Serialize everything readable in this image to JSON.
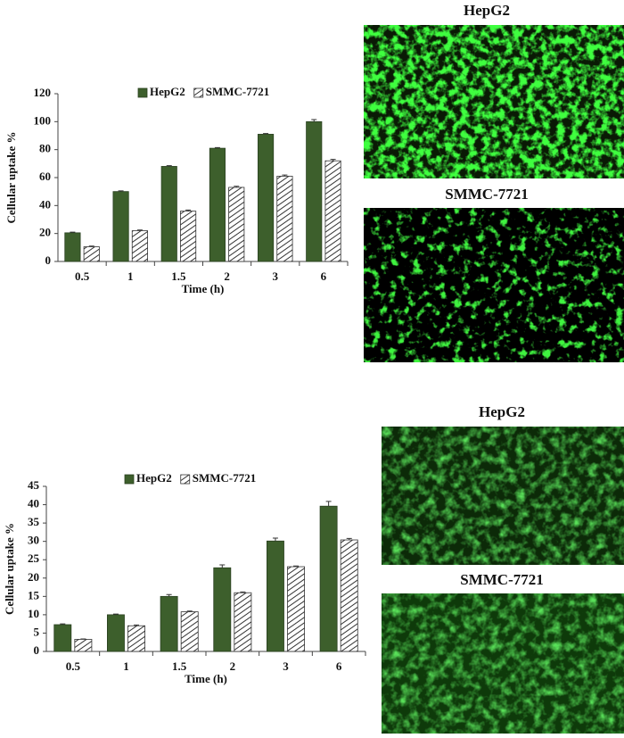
{
  "chart_data": [
    {
      "type": "bar",
      "y_label": "Cellular uptake %",
      "x_label": "Time (h)",
      "categories": [
        "0.5",
        "1",
        "1.5",
        "2",
        "3",
        "6"
      ],
      "series": [
        {
          "name": "HepG2",
          "color": "#3d5f2c",
          "hatch": false,
          "values": [
            20.5,
            50,
            68,
            81,
            91,
            100
          ],
          "errors": [
            0.5,
            0.5,
            0.5,
            0.5,
            0.5,
            1.5
          ]
        },
        {
          "name": "SMMC-7721",
          "color": "#333333",
          "hatch": true,
          "values": [
            10.5,
            22,
            36,
            53,
            61,
            72
          ],
          "errors": [
            0.5,
            0.5,
            0.8,
            0.8,
            0.8,
            1
          ]
        }
      ],
      "ylim": [
        0,
        120
      ],
      "yticks": [
        0,
        20,
        40,
        60,
        80,
        100,
        120
      ],
      "grid": false
    },
    {
      "type": "bar",
      "y_label": "Cellular uptake %",
      "x_label": "Time (h)",
      "categories": [
        "0.5",
        "1",
        "1.5",
        "2",
        "3",
        "6"
      ],
      "series": [
        {
          "name": "HepG2",
          "color": "#3d5f2c",
          "hatch": false,
          "values": [
            7.3,
            10,
            15,
            22.8,
            30.1,
            39.6
          ],
          "errors": [
            0.2,
            0.2,
            0.5,
            0.8,
            0.8,
            1.3
          ]
        },
        {
          "name": "SMMC-7721",
          "color": "#333333",
          "hatch": true,
          "values": [
            3.3,
            7,
            10.8,
            16,
            23.1,
            30.4
          ],
          "errors": [
            0.1,
            0.2,
            0.2,
            0.2,
            0.2,
            0.4
          ]
        }
      ],
      "ylim": [
        0,
        45
      ],
      "yticks": [
        0,
        5,
        10,
        15,
        20,
        25,
        30,
        35,
        40,
        45
      ],
      "grid": false
    }
  ],
  "images": [
    {
      "label": "HepG2"
    },
    {
      "label": "SMMC-7721"
    },
    {
      "label": "HepG2"
    },
    {
      "label": "SMMC-7721"
    }
  ]
}
